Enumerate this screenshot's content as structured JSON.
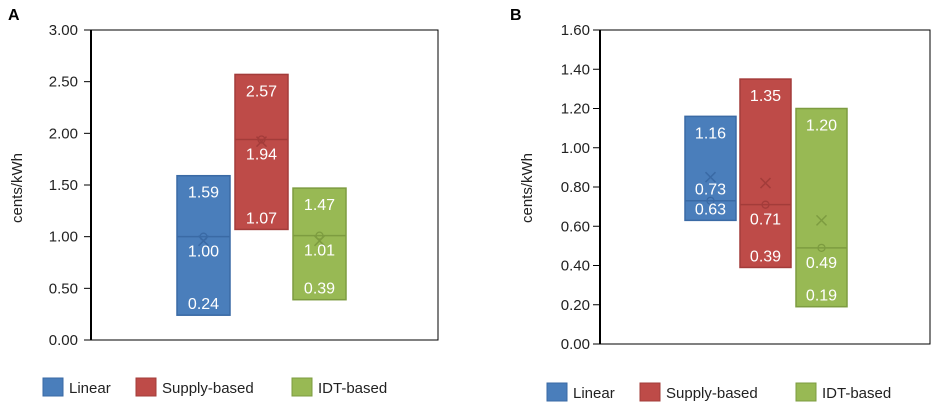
{
  "legend": [
    {
      "name": "Linear",
      "color": "#4a7ebb"
    },
    {
      "name": "Supply-based",
      "color": "#be4b48"
    },
    {
      "name": "IDT-based",
      "color": "#98b954"
    }
  ],
  "chart_data": [
    {
      "type": "box",
      "panel_label": "A",
      "ylabel": "cents/kWh",
      "ylim": [
        0,
        3
      ],
      "yticks": [
        "0.00",
        "0.50",
        "1.00",
        "1.50",
        "2.00",
        "2.50",
        "3.00"
      ],
      "series": [
        {
          "name": "Linear",
          "min": 0.24,
          "median": 1.0,
          "max": 1.59,
          "min_label": "0.24",
          "median_label": "1.00",
          "max_label": "1.59",
          "mean": 0.96
        },
        {
          "name": "Supply-based",
          "min": 1.07,
          "median": 1.94,
          "max": 2.57,
          "min_label": "1.07",
          "median_label": "1.94",
          "max_label": "2.57",
          "mean": 1.92
        },
        {
          "name": "IDT-based",
          "min": 0.39,
          "median": 1.01,
          "max": 1.47,
          "min_label": "0.39",
          "median_label": "1.01",
          "max_label": "1.47",
          "mean": 0.96
        }
      ]
    },
    {
      "type": "box",
      "panel_label": "B",
      "ylabel": "cents/kWh",
      "ylim": [
        0,
        1.6
      ],
      "yticks": [
        "0.00",
        "0.20",
        "0.40",
        "0.60",
        "0.80",
        "1.00",
        "1.20",
        "1.40",
        "1.60"
      ],
      "series": [
        {
          "name": "Linear",
          "min": 0.63,
          "median": 0.73,
          "max": 1.16,
          "min_label": "0.63",
          "median_label": "0.73",
          "max_label": "1.16",
          "mean": 0.85
        },
        {
          "name": "Supply-based",
          "min": 0.39,
          "median": 0.71,
          "max": 1.35,
          "min_label": "0.39",
          "median_label": "0.71",
          "max_label": "1.35",
          "mean": 0.82
        },
        {
          "name": "IDT-based",
          "min": 0.19,
          "median": 0.49,
          "max": 1.2,
          "min_label": "0.19",
          "median_label": "0.49",
          "max_label": "1.20",
          "mean": 0.63
        }
      ]
    }
  ]
}
